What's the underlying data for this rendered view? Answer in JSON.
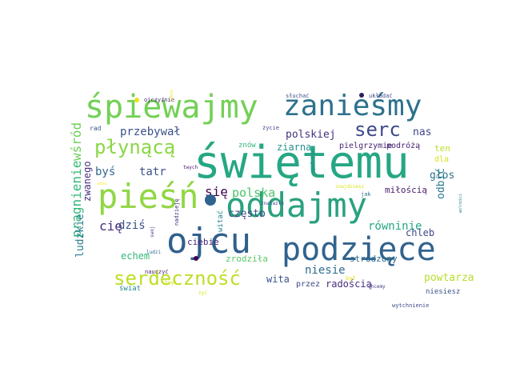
{
  "word_cloud": {
    "words": [
      {
        "text": "świętemu",
        "color": "#26a784"
      },
      {
        "text": "ojcu",
        "color": "#30608d"
      },
      {
        "text": "podzięce",
        "color": "#30638e"
      },
      {
        "text": "śpiewajmy",
        "color": "#73d056"
      },
      {
        "text": "zanieśmy",
        "color": "#2d718e"
      },
      {
        "text": "oddajmy",
        "color": "#2aa17f"
      },
      {
        "text": "pieśń",
        "color": "#90d743"
      },
      {
        "text": "serdeczność",
        "color": "#bddf26"
      },
      {
        "text": "płynącą",
        "color": "#8bd646"
      },
      {
        "text": "serc",
        "color": "#3e4a89"
      },
      {
        "text": "pragnienie",
        "color": "#35b779"
      },
      {
        "text": "wśród",
        "color": "#6ece58"
      },
      {
        "text": "przebywał",
        "color": "#3b528b"
      },
      {
        "text": "polskiej",
        "color": "#46327e"
      },
      {
        "text": "nas",
        "color": "#3f4788"
      },
      {
        "text": "ten",
        "color": "#b8de29"
      },
      {
        "text": "dla",
        "color": "#d8e219"
      },
      {
        "text": "głos",
        "color": "#2c728e"
      },
      {
        "text": "tatr",
        "color": "#3b528b"
      },
      {
        "text": "się",
        "color": "#440154"
      },
      {
        "text": "polska",
        "color": "#4ec36b"
      },
      {
        "text": "często",
        "color": "#3e4989"
      },
      {
        "text": "ziarna",
        "color": "#21918c"
      },
      {
        "text": "znów",
        "color": "#2fb47c"
      },
      {
        "text": "pielgrzymie",
        "color": "#482475"
      },
      {
        "text": "podróżą",
        "color": "#482173"
      },
      {
        "text": "byś",
        "color": "#31688e"
      },
      {
        "text": "cię",
        "color": "#472d7b"
      },
      {
        "text": "dziś",
        "color": "#3b528b"
      },
      {
        "text": "echem",
        "color": "#35b779"
      },
      {
        "text": "ludzkie",
        "color": "#287c8e"
      },
      {
        "text": "zwanego",
        "color": "#46307e"
      },
      {
        "text": "miłością",
        "color": "#481c6e"
      },
      {
        "text": "odbić",
        "color": "#2a788e"
      },
      {
        "text": "równinie",
        "color": "#22a884"
      },
      {
        "text": "niesie",
        "color": "#2f6c8e"
      },
      {
        "text": "chleb",
        "color": "#3e4a89"
      },
      {
        "text": "ciebie",
        "color": "#482878"
      },
      {
        "text": "wita",
        "color": "#3b528b"
      },
      {
        "text": "zrodziła",
        "color": "#5cc863"
      },
      {
        "text": "strudzony",
        "color": "#2f6b8e"
      },
      {
        "text": "powtarza",
        "color": "#b5de2b"
      },
      {
        "text": "radością",
        "color": "#472f7d"
      },
      {
        "text": "niesiesz",
        "color": "#3b528b"
      },
      {
        "text": "wytchnienie",
        "color": "#3e4c8a"
      },
      {
        "text": "chcemy",
        "color": "#433e85"
      },
      {
        "text": "świat",
        "color": "#23898e"
      },
      {
        "text": "bogu",
        "color": "#d5e21a"
      },
      {
        "text": "nauczyć",
        "color": "#481f70"
      },
      {
        "text": "ludzi",
        "color": "#31688e"
      },
      {
        "text": "swoj",
        "color": "#3f4788"
      },
      {
        "text": "nadzieję",
        "color": "#46327e"
      },
      {
        "text": "witać",
        "color": "#26828e"
      },
      {
        "text": "żyć",
        "color": "#d8e219"
      },
      {
        "text": "przez",
        "color": "#3e4a89"
      },
      {
        "text": "był",
        "color": "#e5e419"
      },
      {
        "text": "jak",
        "color": "#2a788e"
      },
      {
        "text": "znajdziesz",
        "color": "#d8e219"
      },
      {
        "text": "spełniać",
        "color": "#25838e"
      },
      {
        "text": "znalazło",
        "color": "#3e4989"
      },
      {
        "text": "wolności",
        "color": "#26828e"
      },
      {
        "text": "rad",
        "color": "#3b528b"
      },
      {
        "text": "twych",
        "color": "#481467"
      },
      {
        "text": "życie",
        "color": "#3e4989"
      },
      {
        "text": "słuchać",
        "color": "#3b528b"
      },
      {
        "text": "układać",
        "color": "#3e4989"
      },
      {
        "text": "ojczyźnie",
        "color": "#482878"
      },
      {
        "text": "dobro",
        "color": "#e7e419"
      },
      {
        "text": "wiec",
        "color": "#fde725"
      }
    ],
    "dots": [
      {
        "name": "dot-1",
        "color": "#e5e419"
      },
      {
        "name": "dot-2",
        "color": "#2d1e5c"
      },
      {
        "name": "dot-3",
        "color": "#440154"
      },
      {
        "name": "dot-4",
        "color": "#30638e"
      }
    ]
  }
}
